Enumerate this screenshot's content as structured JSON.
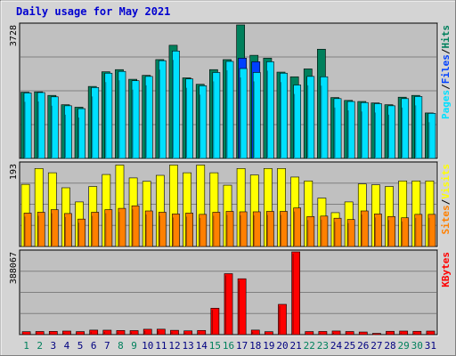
{
  "title": "Daily usage for May 2021",
  "colors": {
    "hits": "#00805c",
    "files": "#0040ff",
    "pages": "#00e0ff",
    "visits": "#ffff00",
    "sites": "#ff8000",
    "kbytes": "#ff0000",
    "weekend_label": "#00805c",
    "weekday_label": "#000080"
  },
  "chart_data": [
    {
      "type": "bar",
      "name": "hits-files-pages",
      "categories": [
        "1",
        "2",
        "3",
        "4",
        "5",
        "6",
        "7",
        "8",
        "9",
        "10",
        "11",
        "12",
        "13",
        "14",
        "15",
        "16",
        "17",
        "18",
        "19",
        "20",
        "21",
        "22",
        "23",
        "24",
        "25",
        "26",
        "27",
        "28",
        "29",
        "30",
        "31"
      ],
      "weekend_days": [
        "1",
        "2",
        "8",
        "9",
        "15",
        "16",
        "22",
        "23",
        "29",
        "30"
      ],
      "ymax_label": "3728",
      "ylim": [
        0,
        3728
      ],
      "right_legend": [
        "Pages",
        "Files",
        "Hits"
      ],
      "series": [
        {
          "name": "Hits",
          "values": [
            1850,
            1860,
            1760,
            1500,
            1430,
            2010,
            2420,
            2480,
            2210,
            2320,
            2760,
            3160,
            2250,
            2070,
            2480,
            2760,
            3728,
            2880,
            2800,
            2410,
            2280,
            2500,
            3050,
            1700,
            1620,
            1590,
            1550,
            1500,
            1710,
            1760,
            1270
          ]
        },
        {
          "name": "Files",
          "values": [
            0,
            0,
            0,
            0,
            0,
            0,
            0,
            0,
            0,
            0,
            0,
            0,
            0,
            0,
            0,
            0,
            2800,
            2700,
            0,
            0,
            0,
            0,
            0,
            0,
            0,
            0,
            0,
            0,
            0,
            0,
            0
          ]
        },
        {
          "name": "Pages",
          "values": [
            1830,
            1840,
            1720,
            1470,
            1390,
            1980,
            2380,
            2430,
            2170,
            2290,
            2730,
            3000,
            2220,
            2030,
            2400,
            2710,
            2510,
            2400,
            2700,
            2380,
            2050,
            2290,
            2280,
            1670,
            1590,
            1560,
            1530,
            1470,
            1670,
            1730,
            1260
          ]
        }
      ]
    },
    {
      "type": "bar",
      "name": "visits-sites",
      "categories": [
        "1",
        "2",
        "3",
        "4",
        "5",
        "6",
        "7",
        "8",
        "9",
        "10",
        "11",
        "12",
        "13",
        "14",
        "15",
        "16",
        "17",
        "18",
        "19",
        "20",
        "21",
        "22",
        "23",
        "24",
        "25",
        "26",
        "27",
        "28",
        "29",
        "30",
        "31"
      ],
      "ymax_label": "193",
      "ylim": [
        0,
        193
      ],
      "right_legend": [
        "Sites",
        "Visits"
      ],
      "series": [
        {
          "name": "Visits",
          "values": [
            145,
            182,
            172,
            137,
            104,
            140,
            168,
            190,
            160,
            152,
            166,
            190,
            172,
            190,
            172,
            143,
            182,
            167,
            182,
            182,
            162,
            153,
            113,
            79,
            104,
            146,
            144,
            140,
            153,
            153,
            153
          ]
        },
        {
          "name": "Sites",
          "values": [
            78,
            80,
            86,
            77,
            64,
            80,
            86,
            89,
            95,
            83,
            80,
            76,
            78,
            75,
            80,
            82,
            81,
            81,
            82,
            82,
            90,
            70,
            71,
            66,
            63,
            83,
            76,
            70,
            67,
            75,
            75
          ]
        }
      ]
    },
    {
      "type": "bar",
      "name": "kbytes",
      "categories": [
        "1",
        "2",
        "3",
        "4",
        "5",
        "6",
        "7",
        "8",
        "9",
        "10",
        "11",
        "12",
        "13",
        "14",
        "15",
        "16",
        "17",
        "18",
        "19",
        "20",
        "21",
        "22",
        "23",
        "24",
        "25",
        "26",
        "27",
        "28",
        "29",
        "30",
        "31"
      ],
      "ymax_label": "388067",
      "ylim": [
        0,
        388067
      ],
      "right_legend": [
        "KBytes"
      ],
      "series": [
        {
          "name": "KBytes",
          "values": [
            14000,
            14800,
            15300,
            16800,
            14400,
            21300,
            21000,
            19500,
            19000,
            25400,
            25600,
            20300,
            17800,
            19700,
            124000,
            286000,
            262000,
            21400,
            14000,
            142000,
            388067,
            14500,
            15000,
            17000,
            14700,
            12400,
            6200,
            15700,
            16800,
            15700,
            16700
          ]
        }
      ]
    }
  ]
}
